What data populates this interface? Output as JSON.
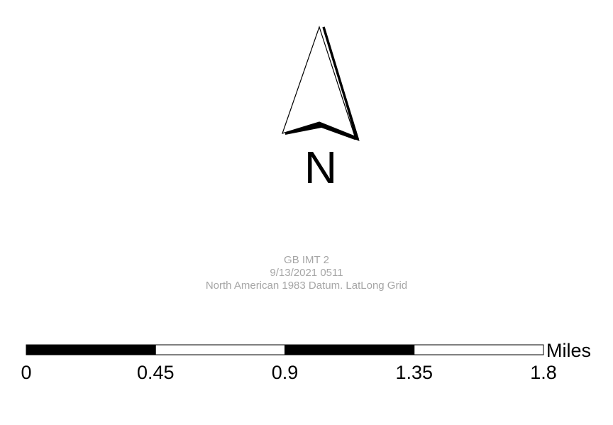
{
  "north_arrow": {
    "letter": "N",
    "icon": "north-arrow-icon",
    "color": "#000000"
  },
  "info": {
    "title": "GB IMT 2",
    "date": "9/13/2021 0511",
    "datum": "North American 1983 Datum. LatLong Grid",
    "text_color": "#a6a6a6"
  },
  "scale_bar": {
    "unit_label": "Miles",
    "ticks": [
      "0",
      "0.45",
      "0.9",
      "1.35",
      "1.8"
    ],
    "tick_values": [
      0,
      0.45,
      0.9,
      1.35,
      1.8
    ],
    "segment_fills": [
      "black",
      "white",
      "black",
      "white"
    ],
    "color": "#000000"
  }
}
